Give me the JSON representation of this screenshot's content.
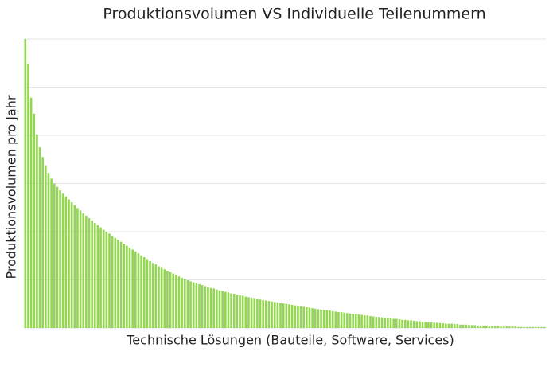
{
  "chart_data": {
    "type": "bar",
    "title": "Produktionsvolumen VS Individuelle Teilenummern",
    "x_label": "Technische Lösungen (Bauteile, Software, Services)",
    "y_label": "Produktionsvolumen pro Jahr",
    "color": "#93d651",
    "grid": true,
    "ylim": [
      0,
      6
    ],
    "yticks": [
      0,
      1,
      2,
      3,
      4,
      5,
      6
    ],
    "categories": [
      null,
      null,
      null,
      null,
      null,
      null,
      null,
      null,
      null,
      null,
      null,
      null,
      null,
      null,
      null,
      null,
      null,
      null,
      null,
      null,
      null,
      null,
      null,
      null,
      null,
      null,
      null,
      null,
      null,
      null,
      null,
      null,
      null,
      null,
      null,
      null,
      null,
      null,
      null,
      null,
      null,
      null,
      null,
      null,
      null,
      null,
      null,
      null,
      null,
      null,
      null,
      null,
      null,
      null,
      null,
      null,
      null,
      null,
      null,
      null,
      null,
      null,
      null,
      null,
      null,
      null,
      null,
      null,
      null,
      null,
      null,
      null,
      null,
      null,
      null,
      null,
      null,
      null,
      null,
      null,
      null,
      null,
      null,
      null,
      null,
      null,
      null,
      null,
      null,
      null,
      null,
      null,
      null,
      null,
      null,
      null,
      null,
      null,
      null,
      null,
      null,
      null,
      null,
      null,
      null,
      null,
      null,
      null,
      null,
      null,
      null,
      null,
      null,
      null,
      null,
      null,
      null,
      null,
      null,
      null,
      null,
      null,
      null,
      null,
      null,
      null,
      null,
      null,
      null,
      null,
      null,
      null,
      null,
      null,
      null,
      null,
      null,
      null,
      null,
      null,
      null,
      null,
      null,
      null,
      null,
      null,
      null,
      null,
      null,
      null,
      null,
      null,
      null,
      null,
      null,
      null,
      null,
      null,
      null,
      null,
      null,
      null,
      null,
      null,
      null,
      null,
      null,
      null,
      null,
      null,
      null,
      null,
      null,
      null,
      null,
      null,
      null,
      null,
      null,
      null
    ],
    "values": [
      6.0,
      5.49,
      4.78,
      4.45,
      4.02,
      3.75,
      3.55,
      3.38,
      3.22,
      3.1,
      3.0,
      2.93,
      2.86,
      2.79,
      2.73,
      2.67,
      2.61,
      2.55,
      2.49,
      2.44,
      2.38,
      2.33,
      2.28,
      2.23,
      2.18,
      2.13,
      2.09,
      2.04,
      2.0,
      1.96,
      1.91,
      1.87,
      1.83,
      1.79,
      1.75,
      1.71,
      1.67,
      1.63,
      1.59,
      1.55,
      1.51,
      1.47,
      1.43,
      1.39,
      1.35,
      1.32,
      1.28,
      1.25,
      1.22,
      1.19,
      1.16,
      1.13,
      1.1,
      1.07,
      1.04,
      1.02,
      0.99,
      0.97,
      0.95,
      0.93,
      0.91,
      0.89,
      0.87,
      0.85,
      0.83,
      0.82,
      0.8,
      0.78,
      0.77,
      0.75,
      0.74,
      0.72,
      0.71,
      0.69,
      0.68,
      0.67,
      0.65,
      0.64,
      0.63,
      0.62,
      0.6,
      0.59,
      0.58,
      0.57,
      0.56,
      0.55,
      0.54,
      0.53,
      0.52,
      0.51,
      0.5,
      0.49,
      0.48,
      0.47,
      0.46,
      0.45,
      0.44,
      0.43,
      0.42,
      0.41,
      0.4,
      0.39,
      0.38,
      0.37,
      0.37,
      0.36,
      0.35,
      0.34,
      0.33,
      0.33,
      0.32,
      0.31,
      0.3,
      0.29,
      0.29,
      0.28,
      0.27,
      0.26,
      0.26,
      0.25,
      0.24,
      0.23,
      0.23,
      0.22,
      0.21,
      0.21,
      0.2,
      0.19,
      0.19,
      0.18,
      0.17,
      0.17,
      0.16,
      0.16,
      0.15,
      0.14,
      0.14,
      0.13,
      0.13,
      0.12,
      0.12,
      0.11,
      0.11,
      0.1,
      0.1,
      0.09,
      0.09,
      0.09,
      0.08,
      0.08,
      0.07,
      0.07,
      0.07,
      0.06,
      0.06,
      0.06,
      0.05,
      0.05,
      0.05,
      0.05,
      0.04,
      0.04,
      0.04,
      0.04,
      0.03,
      0.03,
      0.03,
      0.03,
      0.03,
      0.03,
      0.02,
      0.02,
      0.02,
      0.02,
      0.02,
      0.02,
      0.02,
      0.02,
      0.02,
      0.02
    ]
  }
}
